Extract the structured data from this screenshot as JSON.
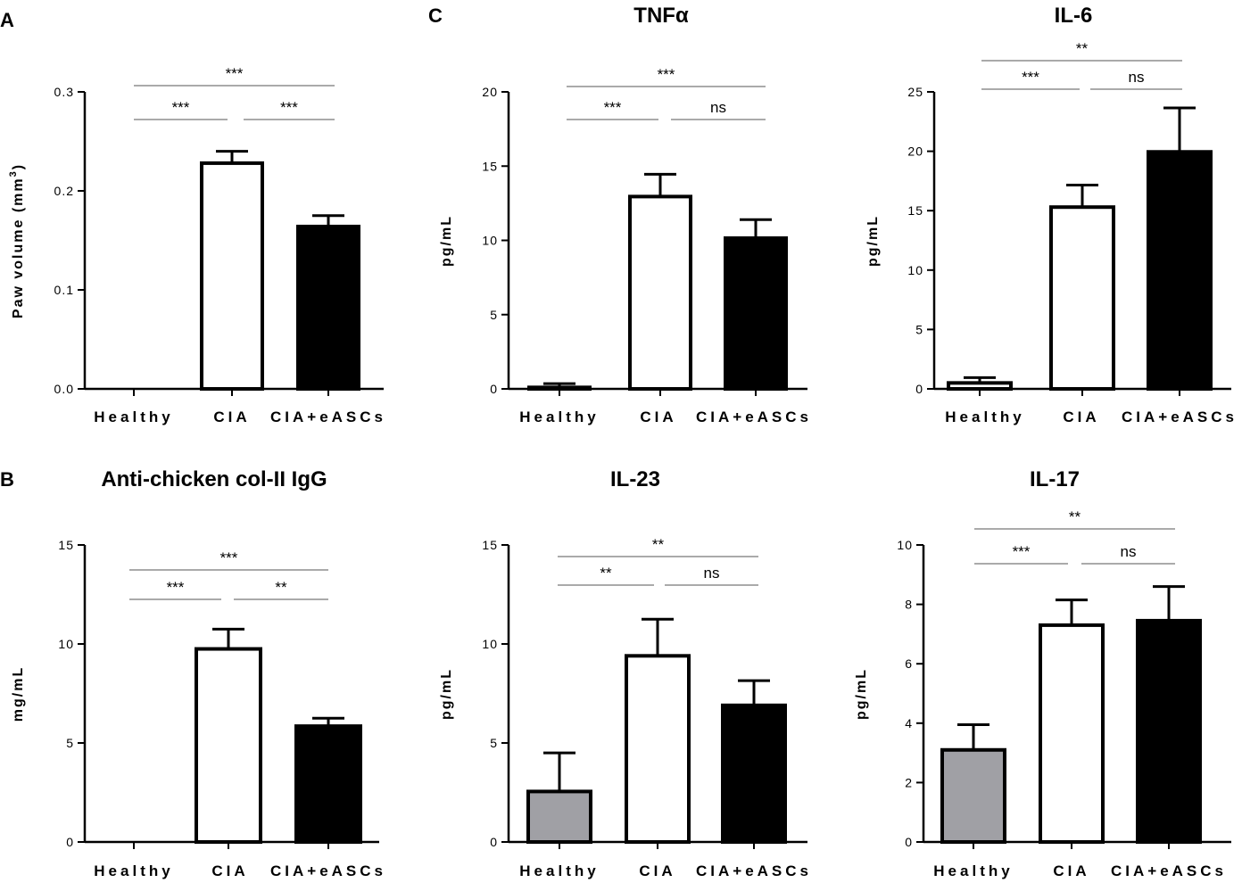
{
  "figure": {
    "panel_letters": [
      "A",
      "B",
      "C"
    ]
  },
  "chart_data": [
    {
      "id": "A",
      "type": "bar",
      "title": "",
      "ylabel": "Paw volume (mm³)",
      "xlabel": "",
      "categories": [
        "Healthy",
        "CIA",
        "CIA+eASCs"
      ],
      "values": [
        0.0,
        0.228,
        0.164
      ],
      "errors": [
        0.0,
        0.012,
        0.011
      ],
      "fills": [
        "#ffffff",
        "#ffffff",
        "#000000"
      ],
      "ylim": [
        0,
        0.3
      ],
      "yticks": [
        "0.0",
        "0.1",
        "0.2",
        "0.3"
      ],
      "ytick_values": [
        0,
        0.1,
        0.2,
        0.3
      ],
      "significance": [
        {
          "from": 0,
          "to": 2,
          "label": "***"
        },
        {
          "from": 0,
          "to": 1,
          "label": "***"
        },
        {
          "from": 1,
          "to": 2,
          "label": "***"
        }
      ]
    },
    {
      "id": "B",
      "type": "bar",
      "title": "Anti-chicken col-II IgG",
      "ylabel": "mg/mL",
      "xlabel": "",
      "categories": [
        "Healthy",
        "CIA",
        "CIA+eASCs"
      ],
      "values": [
        0.0,
        9.75,
        5.85
      ],
      "errors": [
        0.0,
        1.0,
        0.4
      ],
      "fills": [
        "#ffffff",
        "#ffffff",
        "#000000"
      ],
      "ylim": [
        0,
        15
      ],
      "yticks": [
        "0",
        "5",
        "10",
        "15"
      ],
      "ytick_values": [
        0,
        5,
        10,
        15
      ],
      "significance": [
        {
          "from": 0,
          "to": 2,
          "label": "***"
        },
        {
          "from": 0,
          "to": 1,
          "label": "***"
        },
        {
          "from": 1,
          "to": 2,
          "label": "**"
        }
      ]
    },
    {
      "id": "C-TNFa",
      "type": "bar",
      "title": "TNFα",
      "ylabel": "pg/mL",
      "xlabel": "",
      "categories": [
        "Healthy",
        "CIA",
        "CIA+eASCs"
      ],
      "values": [
        0.1,
        12.95,
        10.15
      ],
      "errors": [
        0.25,
        1.5,
        1.25
      ],
      "fills": [
        "#ffffff",
        "#ffffff",
        "#000000"
      ],
      "ylim": [
        0,
        20
      ],
      "yticks": [
        "0",
        "5",
        "10",
        "15",
        "20"
      ],
      "ytick_values": [
        0,
        5,
        10,
        15,
        20
      ],
      "significance": [
        {
          "from": 0,
          "to": 2,
          "label": "***"
        },
        {
          "from": 0,
          "to": 1,
          "label": "***"
        },
        {
          "from": 1,
          "to": 2,
          "label": "ns"
        }
      ]
    },
    {
      "id": "C-IL6",
      "type": "bar",
      "title": "IL-6",
      "ylabel": "pg/mL",
      "xlabel": "",
      "categories": [
        "Healthy",
        "CIA",
        "CIA+eASCs"
      ],
      "values": [
        0.5,
        15.3,
        19.95
      ],
      "errors": [
        0.45,
        1.85,
        3.7
      ],
      "fills": [
        "#ffffff",
        "#ffffff",
        "#000000"
      ],
      "ylim": [
        0,
        25
      ],
      "yticks": [
        "0",
        "5",
        "10",
        "15",
        "20",
        "25"
      ],
      "ytick_values": [
        0,
        5,
        10,
        15,
        20,
        25
      ],
      "significance": [
        {
          "from": 0,
          "to": 2,
          "label": "**"
        },
        {
          "from": 0,
          "to": 1,
          "label": "***"
        },
        {
          "from": 1,
          "to": 2,
          "label": "ns"
        }
      ]
    },
    {
      "id": "C-IL23",
      "type": "bar",
      "title": "IL-23",
      "ylabel": "pg/mL",
      "xlabel": "",
      "categories": [
        "Healthy",
        "CIA",
        "CIA+eASCs"
      ],
      "values": [
        2.55,
        9.4,
        6.9
      ],
      "errors": [
        1.95,
        1.85,
        1.25
      ],
      "fills": [
        "#a0a0a5",
        "#ffffff",
        "#000000"
      ],
      "ylim": [
        0,
        15
      ],
      "yticks": [
        "0",
        "5",
        "10",
        "15"
      ],
      "ytick_values": [
        0,
        5,
        10,
        15
      ],
      "significance": [
        {
          "from": 0,
          "to": 2,
          "label": "**"
        },
        {
          "from": 0,
          "to": 1,
          "label": "**"
        },
        {
          "from": 1,
          "to": 2,
          "label": "ns"
        }
      ]
    },
    {
      "id": "C-IL17",
      "type": "bar",
      "title": "IL-17",
      "ylabel": "pg/mL",
      "xlabel": "",
      "categories": [
        "Healthy",
        "CIA",
        "CIA+eASCs"
      ],
      "values": [
        3.1,
        7.3,
        7.45
      ],
      "errors": [
        0.85,
        0.85,
        1.15
      ],
      "fills": [
        "#a0a0a5",
        "#ffffff",
        "#000000"
      ],
      "ylim": [
        0,
        10
      ],
      "yticks": [
        "0",
        "2",
        "4",
        "6",
        "8",
        "10"
      ],
      "ytick_values": [
        0,
        2,
        4,
        6,
        8,
        10
      ],
      "significance": [
        {
          "from": 0,
          "to": 2,
          "label": "**"
        },
        {
          "from": 0,
          "to": 1,
          "label": "***"
        },
        {
          "from": 1,
          "to": 2,
          "label": "ns"
        }
      ]
    }
  ]
}
